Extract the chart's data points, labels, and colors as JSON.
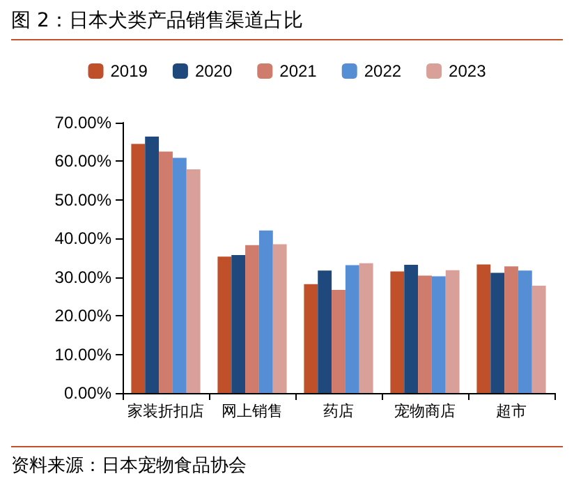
{
  "chart_data": {
    "type": "bar",
    "title": "图 2：日本犬类产品销售渠道占比",
    "annotations": [
      "资料来源：日本宠物食品协会"
    ],
    "categories": [
      "家装折扣店",
      "网上销售",
      "药店",
      "宠物商店",
      "超市"
    ],
    "series": [
      {
        "name": "2019",
        "color": "#c0502a",
        "values": [
          64.5,
          35.3,
          28.2,
          31.5,
          33.3
        ]
      },
      {
        "name": "2020",
        "color": "#1f497d",
        "values": [
          66.4,
          35.7,
          31.7,
          33.2,
          31.1
        ]
      },
      {
        "name": "2021",
        "color": "#d07c6c",
        "values": [
          62.5,
          38.3,
          26.7,
          30.4,
          32.8
        ]
      },
      {
        "name": "2022",
        "color": "#558ed5",
        "values": [
          60.9,
          42.1,
          33.1,
          30.2,
          31.7
        ]
      },
      {
        "name": "2023",
        "color": "#d9a09a",
        "values": [
          57.9,
          38.5,
          33.6,
          31.8,
          27.8
        ]
      }
    ],
    "ylim": [
      0,
      70
    ],
    "yticks": [
      {
        "value": 0,
        "label": "0.00%"
      },
      {
        "value": 10,
        "label": "10.00%"
      },
      {
        "value": 20,
        "label": "20.00%"
      },
      {
        "value": 30,
        "label": "30.00%"
      },
      {
        "value": 40,
        "label": "40.00%"
      },
      {
        "value": 50,
        "label": "50.00%"
      },
      {
        "value": 60,
        "label": "60.00%"
      },
      {
        "value": 70,
        "label": "70.00%"
      }
    ],
    "grid": false,
    "legend": "top"
  }
}
